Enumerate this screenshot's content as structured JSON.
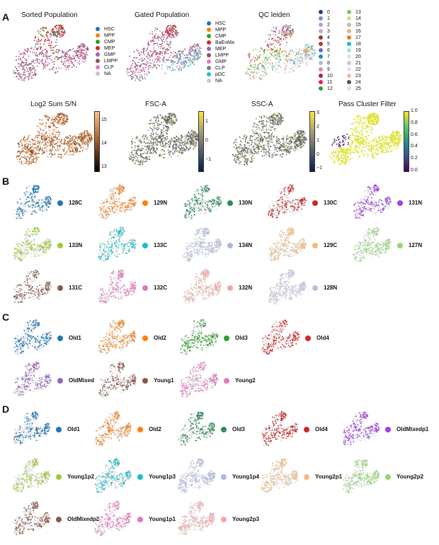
{
  "panels": {
    "A": "A",
    "B": "B",
    "C": "C",
    "D": "D"
  },
  "panelA": {
    "titles": {
      "sorted": "Sorted Population",
      "gated": "Gated Population",
      "qc": "QC leiden",
      "log2": "Log2 Sum S/N",
      "fsc": "FSC-A",
      "ssc": "SSC-A",
      "pass": "Pass Cluster Filter"
    },
    "sorted_legend": [
      {
        "label": "HSC",
        "color": "#1f77b4"
      },
      {
        "label": "MPP",
        "color": "#ff7f0e"
      },
      {
        "label": "CMP",
        "color": "#2ca02c"
      },
      {
        "label": "MEP",
        "color": "#d62728"
      },
      {
        "label": "GMP",
        "color": "#9467bd"
      },
      {
        "label": "LMPP",
        "color": "#8c564b"
      },
      {
        "label": "CLP",
        "color": "#e377c2"
      },
      {
        "label": "NA",
        "color": "#c7c7c7"
      }
    ],
    "gated_legend": [
      {
        "label": "HSC",
        "color": "#1f77b4"
      },
      {
        "label": "MPP",
        "color": "#ff7f0e"
      },
      {
        "label": "CMP",
        "color": "#2ca02c"
      },
      {
        "label": "BaEoMa",
        "color": "#d62728"
      },
      {
        "label": "MEP",
        "color": "#9467bd"
      },
      {
        "label": "LMPP",
        "color": "#8c564b"
      },
      {
        "label": "GMP",
        "color": "#e377c2"
      },
      {
        "label": "CLP",
        "color": "#7f7f7f"
      },
      {
        "label": "pDC",
        "color": "#17becf"
      },
      {
        "label": "NA",
        "color": "#c7c7c7"
      }
    ],
    "qc_legend_col1": [
      {
        "label": "0",
        "color": "#1f3c8f"
      },
      {
        "label": "1",
        "color": "#7f8cc9"
      },
      {
        "label": "2",
        "color": "#a5a8d6"
      },
      {
        "label": "3",
        "color": "#c9a5c9"
      },
      {
        "label": "4",
        "color": "#8c3a3a"
      },
      {
        "label": "5",
        "color": "#c0392b"
      },
      {
        "label": "6",
        "color": "#5a6fd0"
      },
      {
        "label": "7",
        "color": "#2e86c1"
      },
      {
        "label": "8",
        "color": "#b0b8e0"
      },
      {
        "label": "9",
        "color": "#d98cb3"
      },
      {
        "label": "10",
        "color": "#c2185b"
      },
      {
        "label": "11",
        "color": "#e91e63"
      },
      {
        "label": "12",
        "color": "#2ca02c"
      }
    ],
    "qc_legend_col2": [
      {
        "label": "13",
        "color": "#8bc34a"
      },
      {
        "label": "14",
        "color": "#c5e1a5"
      },
      {
        "label": "15",
        "color": "#bdbdbd"
      },
      {
        "label": "16",
        "color": "#f0b27a"
      },
      {
        "label": "17",
        "color": "#e67e22"
      },
      {
        "label": "18",
        "color": "#17becf"
      },
      {
        "label": "19",
        "color": "#a3e4d7"
      },
      {
        "label": "20",
        "color": "#e0e0e0"
      },
      {
        "label": "21",
        "color": "#d7bde2"
      },
      {
        "label": "22",
        "color": "#ebdef0"
      },
      {
        "label": "23",
        "color": "#f5b7b1"
      },
      {
        "label": "24",
        "color": "#555555"
      },
      {
        "label": "25",
        "color": "#dcdcdc"
      }
    ],
    "log2_ticks": [
      "15",
      "14",
      "13"
    ],
    "fsc_ticks": [
      "1",
      "0",
      "−1"
    ],
    "ssc_ticks": [
      "3",
      "2",
      "1",
      "0",
      "−1"
    ],
    "pass_ticks": [
      "1.0",
      "0.8",
      "0.6",
      "0.4",
      "0.2",
      "0.0"
    ]
  },
  "panelB": [
    {
      "label": "128C",
      "color": "#1f77b4"
    },
    {
      "label": "129N",
      "color": "#ff7f0e"
    },
    {
      "label": "130N",
      "color": "#2e8b57"
    },
    {
      "label": "130C",
      "color": "#c62828"
    },
    {
      "label": "131N",
      "color": "#a040e0"
    },
    {
      "label": "133N",
      "color": "#9acd32"
    },
    {
      "label": "133C",
      "color": "#17becf"
    },
    {
      "label": "134N",
      "color": "#aab8e0"
    },
    {
      "label": "129C",
      "color": "#f5b97a"
    },
    {
      "label": "127N",
      "color": "#90d870"
    },
    {
      "label": "131C",
      "color": "#8b5a4a"
    },
    {
      "label": "132C",
      "color": "#e377c2"
    },
    {
      "label": "132N",
      "color": "#f4a6a0"
    },
    {
      "label": "128N",
      "color": "#c8b8e0"
    }
  ],
  "panelC": [
    {
      "label": "Old1",
      "color": "#1f77b4"
    },
    {
      "label": "Old2",
      "color": "#ff7f0e"
    },
    {
      "label": "Old3",
      "color": "#2ca02c"
    },
    {
      "label": "Old4",
      "color": "#d62728"
    },
    {
      "label": "OldMixed",
      "color": "#9467bd"
    },
    {
      "label": "Young1",
      "color": "#8c564b"
    },
    {
      "label": "Young2",
      "color": "#e377c2"
    }
  ],
  "panelD": [
    {
      "label": "Old1",
      "color": "#1f77b4"
    },
    {
      "label": "Old2",
      "color": "#ff7f0e"
    },
    {
      "label": "Old3",
      "color": "#2e8b57"
    },
    {
      "label": "Old4",
      "color": "#c62828"
    },
    {
      "label": "OldMixedp1",
      "color": "#a040e0"
    },
    {
      "label": "Young1p2",
      "color": "#9acd32"
    },
    {
      "label": "Young1p3",
      "color": "#17becf"
    },
    {
      "label": "Young1p4",
      "color": "#aab8e0"
    },
    {
      "label": "Young2p1",
      "color": "#f5b97a"
    },
    {
      "label": "Young2p2",
      "color": "#90d870"
    },
    {
      "label": "OldMixedp2",
      "color": "#8b5a4a"
    },
    {
      "label": "Young1p1",
      "color": "#e377c2"
    },
    {
      "label": "Young2p3",
      "color": "#f4a6a0"
    }
  ]
}
